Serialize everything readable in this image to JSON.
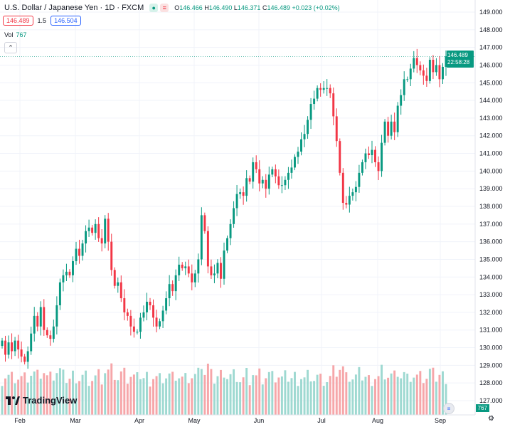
{
  "header": {
    "title": "U.S. Dollar / Japanese Yen · 1D · FXCM",
    "o_label": "O",
    "o": "146.466",
    "h_label": "H",
    "h": "146.490",
    "l_label": "L",
    "l": "146.371",
    "c_label": "C",
    "c": "146.489",
    "change": "+0.023 (+0.02%)"
  },
  "trade": {
    "sell": "146.489",
    "spread": "1.5",
    "buy": "146.504"
  },
  "volume": {
    "label": "Vol",
    "value": "767"
  },
  "price_label": {
    "price": "146.489",
    "countdown": "22:58:28"
  },
  "brand": "TradingView",
  "colors": {
    "up": "#089981",
    "down": "#f23645",
    "up_vol": "#9ed9d1",
    "down_vol": "#f6a6a9"
  },
  "chart_data": {
    "type": "candlestick",
    "title": "U.S. Dollar / Japanese Yen · 1D · FXCM",
    "ylim": [
      126.5,
      149.5
    ],
    "y_ticks": [
      "149.000",
      "148.000",
      "147.000",
      "146.000",
      "145.000",
      "144.000",
      "143.000",
      "142.000",
      "141.000",
      "140.000",
      "139.000",
      "138.000",
      "137.000",
      "136.000",
      "135.000",
      "134.000",
      "133.000",
      "132.000",
      "131.000",
      "130.000",
      "129.000",
      "128.000",
      "127.000"
    ],
    "x_labels": [
      "Feb",
      "Mar",
      "Apr",
      "May",
      "Jun",
      "Jul",
      "Aug",
      "Sep"
    ],
    "last_price": 146.489,
    "closes": [
      130.4,
      129.6,
      130.3,
      129.8,
      130.4,
      129.9,
      129.5,
      129.2,
      129.8,
      130.8,
      131.8,
      131.2,
      132.3,
      131.0,
      130.7,
      130.5,
      131.2,
      132.4,
      133.7,
      134.1,
      134.3,
      134.1,
      134.9,
      135.6,
      135.2,
      135.9,
      136.6,
      136.8,
      136.5,
      137.0,
      136.2,
      135.9,
      137.3,
      136.0,
      134.4,
      133.5,
      133.7,
      132.8,
      132.0,
      131.8,
      131.2,
      130.9,
      130.9,
      131.7,
      132.0,
      132.6,
      132.4,
      131.7,
      131.2,
      131.5,
      132.1,
      132.8,
      133.6,
      133.2,
      134.1,
      134.7,
      134.5,
      134.6,
      134.2,
      133.7,
      134.2,
      135.0,
      137.5,
      136.6,
      134.6,
      134.1,
      134.2,
      134.8,
      133.9,
      135.5,
      136.2,
      137.0,
      137.9,
      138.7,
      138.8,
      138.6,
      139.6,
      139.4,
      140.5,
      140.1,
      139.3,
      139.5,
      139.0,
      139.8,
      140.1,
      139.7,
      139.2,
      139.2,
      139.5,
      139.9,
      140.2,
      140.8,
      141.1,
      141.8,
      142.1,
      142.9,
      143.8,
      144.1,
      144.7,
      144.6,
      144.7,
      144.7,
      144.4,
      143.1,
      141.7,
      139.9,
      138.2,
      138.1,
      138.6,
      138.8,
      139.1,
      139.9,
      140.5,
      141.0,
      140.9,
      141.2,
      140.5,
      140.0,
      141.6,
      142.8,
      142.0,
      142.8,
      142.2,
      143.7,
      144.3,
      145.2,
      145.2,
      145.8,
      146.4,
      146.0,
      145.7,
      145.4,
      145.1,
      146.3,
      145.6,
      146.0,
      145.2,
      145.9,
      146.5
    ]
  }
}
